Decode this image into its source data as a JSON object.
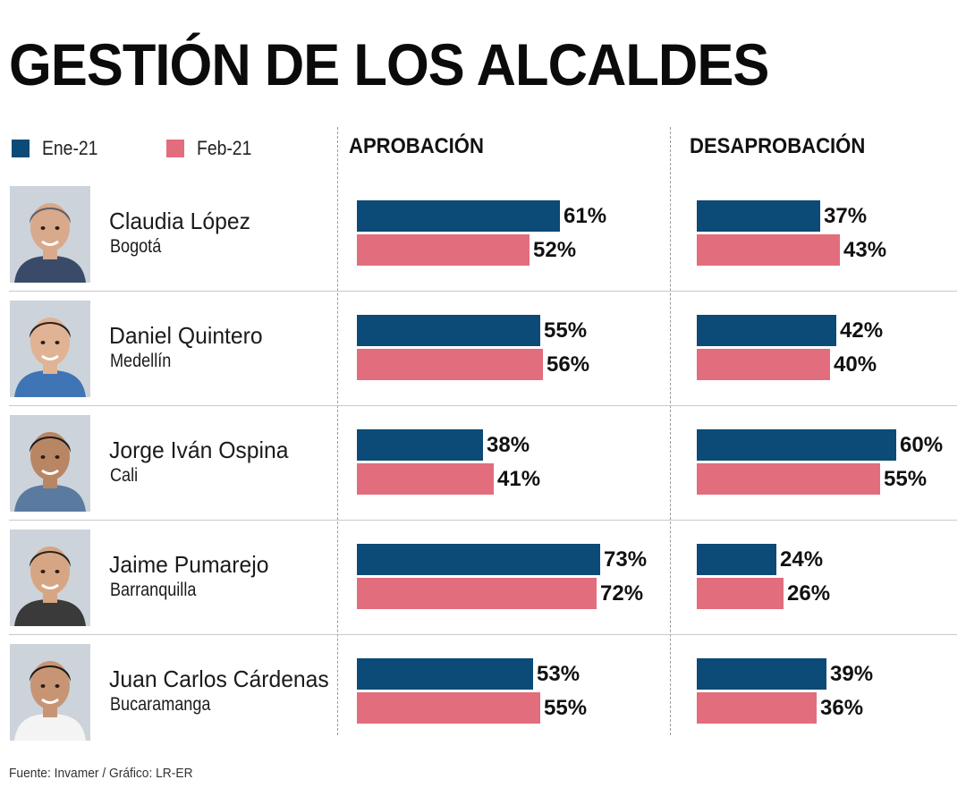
{
  "chart_data": {
    "type": "bar",
    "title": "GESTIÓN DE LOS ALCALDES",
    "series": [
      {
        "name": "Ene-21",
        "color": "#0c4a77"
      },
      {
        "name": "Feb-21",
        "color": "#e26d7d"
      }
    ],
    "panels": [
      {
        "key": "aprobacion",
        "title": "APROBACIÓN"
      },
      {
        "key": "desaprobacion",
        "title": "DESAPROBACIÓN"
      }
    ],
    "mayors": [
      {
        "name": "Claudia López",
        "city": "Bogotá",
        "aprobacion": [
          61,
          52
        ],
        "desaprobacion": [
          37,
          43
        ],
        "aprobacion_labels": [
          "61%",
          "52%"
        ],
        "desaprobacion_labels": [
          "37%",
          "43%"
        ]
      },
      {
        "name": "Daniel Quintero",
        "city": "Medellín",
        "aprobacion": [
          55,
          56
        ],
        "desaprobacion": [
          42,
          40
        ],
        "aprobacion_labels": [
          "55%",
          "56%"
        ],
        "desaprobacion_labels": [
          "42%",
          "40%"
        ]
      },
      {
        "name": "Jorge Iván Ospina",
        "city": "Cali",
        "aprobacion": [
          38,
          41
        ],
        "desaprobacion": [
          60,
          55
        ],
        "aprobacion_labels": [
          "38%",
          "41%"
        ],
        "desaprobacion_labels": [
          "60%",
          "55%"
        ]
      },
      {
        "name": "Jaime Pumarejo",
        "city": "Barranquilla",
        "aprobacion": [
          73,
          72
        ],
        "desaprobacion": [
          24,
          26
        ],
        "aprobacion_labels": [
          "73%",
          "72%"
        ],
        "desaprobacion_labels": [
          "24%",
          "26%"
        ]
      },
      {
        "name": "Juan Carlos Cárdenas",
        "city": "Bucaramanga",
        "aprobacion": [
          53,
          55
        ],
        "desaprobacion": [
          39,
          36
        ],
        "aprobacion_labels": [
          "53%",
          "55%"
        ],
        "desaprobacion_labels": [
          "39%",
          "36%"
        ]
      }
    ],
    "unit": "%",
    "xlim": [
      0,
      100
    ]
  },
  "source": "Fuente: Invamer / Gráfico: LR-ER",
  "icons": {
    "portrait": "person-portrait-icon"
  }
}
